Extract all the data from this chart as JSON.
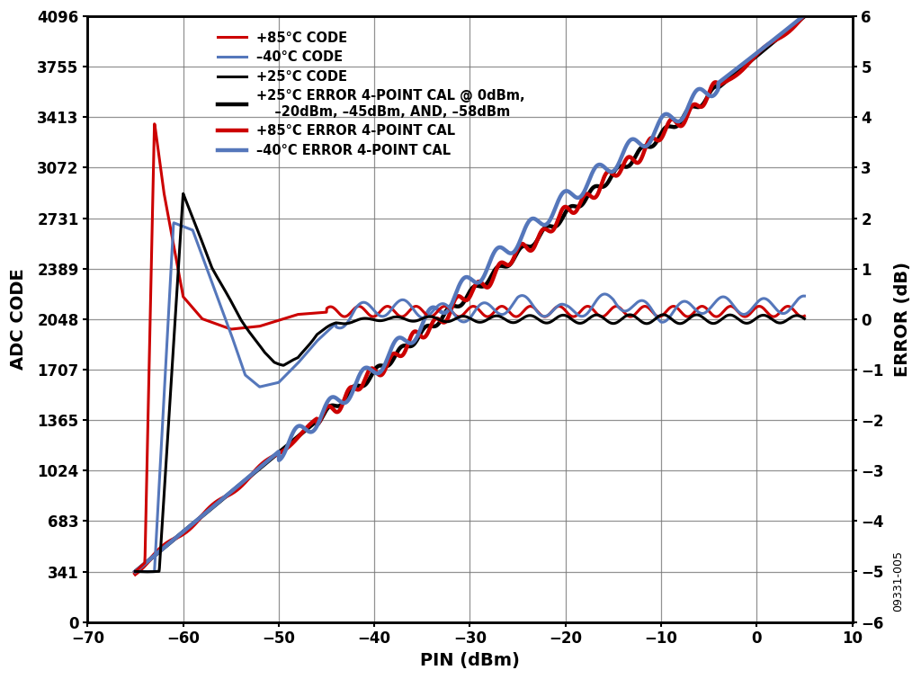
{
  "xlabel": "PIN (dBm)",
  "ylabel_left": "ADC CODE",
  "ylabel_right": "ERROR (dB)",
  "x_min": -70,
  "x_max": 10,
  "y_left_min": 0,
  "y_left_max": 4096,
  "y_right_min": -6,
  "y_right_max": 6,
  "yticks_left": [
    0,
    341,
    683,
    1024,
    1365,
    1707,
    2048,
    2389,
    2731,
    3072,
    3413,
    3755,
    4096
  ],
  "yticks_right": [
    -6,
    -5,
    -4,
    -3,
    -2,
    -1,
    0,
    1,
    2,
    3,
    4,
    5,
    6
  ],
  "xticks": [
    -70,
    -60,
    -50,
    -40,
    -30,
    -20,
    -10,
    0,
    10
  ],
  "watermark": "09331-005",
  "bg_color": "#ffffff",
  "grid_color": "#777777",
  "color_red": "#cc0000",
  "color_blue": "#5577bb",
  "color_black": "#000000",
  "lw_thin": 2.2,
  "lw_thick": 3.2
}
